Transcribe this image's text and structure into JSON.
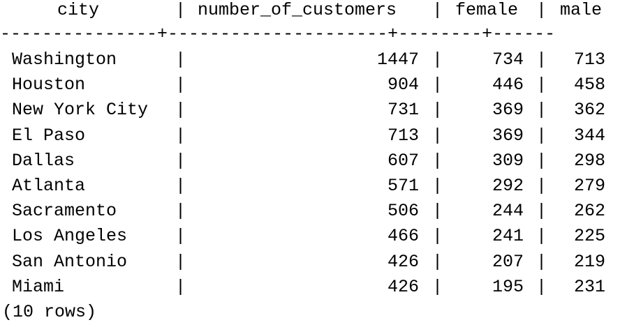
{
  "headers": {
    "city": "city",
    "number_of_customers": "number_of_customers",
    "female": "female",
    "male": "male"
  },
  "divider": "---------------+---------------------+--------+------",
  "rows": [
    {
      "city": "Washington",
      "number_of_customers": "1447",
      "female": "734",
      "male": "713"
    },
    {
      "city": "Houston",
      "number_of_customers": "904",
      "female": "446",
      "male": "458"
    },
    {
      "city": "New York City",
      "number_of_customers": "731",
      "female": "369",
      "male": "362"
    },
    {
      "city": "El Paso",
      "number_of_customers": "713",
      "female": "369",
      "male": "344"
    },
    {
      "city": "Dallas",
      "number_of_customers": "607",
      "female": "309",
      "male": "298"
    },
    {
      "city": "Atlanta",
      "number_of_customers": "571",
      "female": "292",
      "male": "279"
    },
    {
      "city": "Sacramento",
      "number_of_customers": "506",
      "female": "244",
      "male": "262"
    },
    {
      "city": "Los Angeles",
      "number_of_customers": "466",
      "female": "241",
      "male": "225"
    },
    {
      "city": "San Antonio",
      "number_of_customers": "426",
      "female": "207",
      "male": "219"
    },
    {
      "city": "Miami",
      "number_of_customers": "426",
      "female": "195",
      "male": "231"
    }
  ],
  "column_separator": "|",
  "footer": "(10 rows)"
}
